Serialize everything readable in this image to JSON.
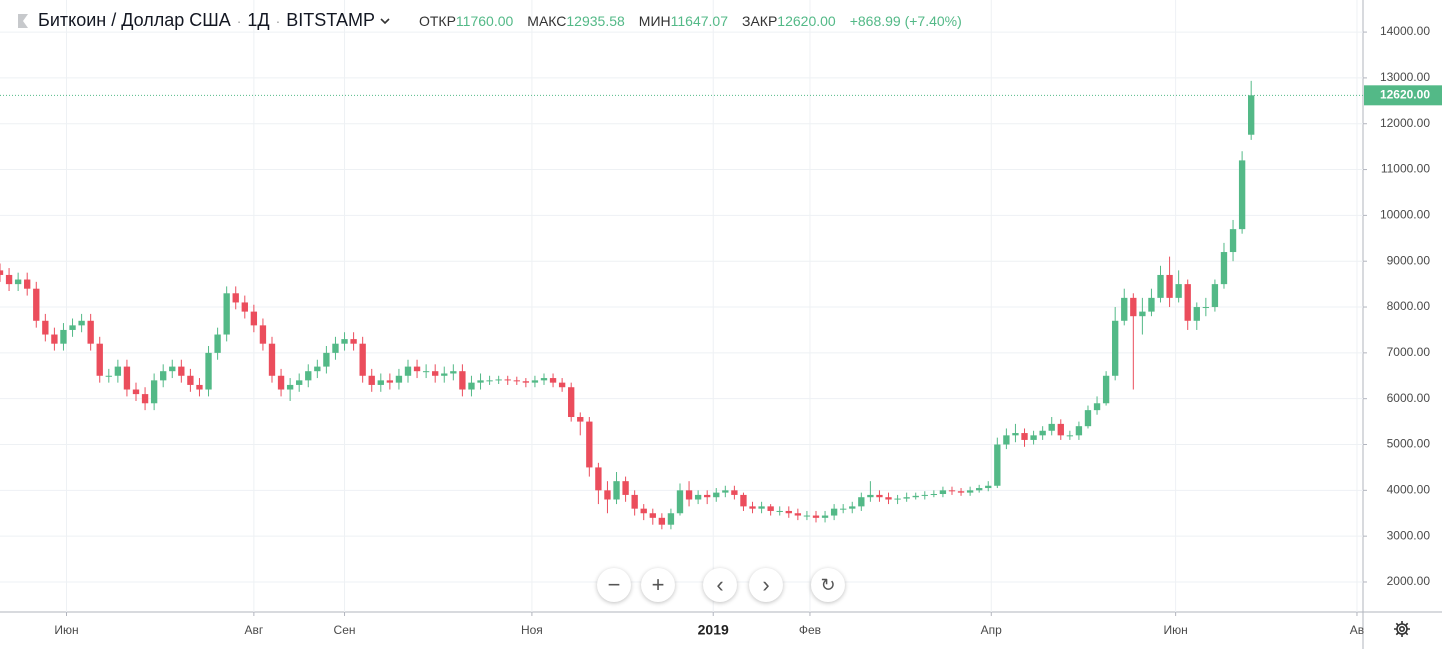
{
  "header": {
    "symbol": "Биткоин / Доллар США",
    "interval": "1Д",
    "exchange": "BITSTAMP",
    "ohlc": [
      {
        "label": "ОТКР",
        "value": "11760.00"
      },
      {
        "label": "МАКС",
        "value": "12935.58"
      },
      {
        "label": "МИН",
        "value": "11647.07"
      },
      {
        "label": "ЗАКР",
        "value": "12620.00"
      }
    ],
    "change": "+868.99 (+7.40%)"
  },
  "chart_data": {
    "type": "candlestick",
    "up_color": "#53b987",
    "down_color": "#eb4d5c",
    "grid": true,
    "xlim": [
      0,
      451
    ],
    "ylim": [
      1345,
      14700
    ],
    "xticks": [
      {
        "value": 22,
        "label": "Июн"
      },
      {
        "value": 84,
        "label": "Авг"
      },
      {
        "value": 114,
        "label": "Сен"
      },
      {
        "value": 176,
        "label": "Ноя"
      },
      {
        "value": 236,
        "label": "2019"
      },
      {
        "value": 268,
        "label": "Фев"
      },
      {
        "value": 328,
        "label": "Апр"
      },
      {
        "value": 389,
        "label": "Июн"
      },
      {
        "value": 449,
        "label": "Ав"
      }
    ],
    "yticks": [
      {
        "value": 2000,
        "label": "2000.00"
      },
      {
        "value": 3000,
        "label": "3000.00"
      },
      {
        "value": 4000,
        "label": "4000.00"
      },
      {
        "value": 5000,
        "label": "5000.00"
      },
      {
        "value": 6000,
        "label": "6000.00"
      },
      {
        "value": 7000,
        "label": "7000.00"
      },
      {
        "value": 8000,
        "label": "8000.00"
      },
      {
        "value": 9000,
        "label": "9000.00"
      },
      {
        "value": 10000,
        "label": "10000.00"
      },
      {
        "value": 11000,
        "label": "11000.00"
      },
      {
        "value": 12000,
        "label": "12000.00"
      },
      {
        "value": 13000,
        "label": "13000.00"
      },
      {
        "value": 14000,
        "label": "14000.00"
      }
    ],
    "last_price": {
      "value": 12620,
      "label": "12620.00"
    },
    "x": [
      0,
      3,
      6,
      9,
      12,
      15,
      18,
      21,
      24,
      27,
      30,
      33,
      36,
      39,
      42,
      45,
      48,
      51,
      54,
      57,
      60,
      63,
      66,
      69,
      72,
      75,
      78,
      81,
      84,
      87,
      90,
      93,
      96,
      99,
      102,
      105,
      108,
      111,
      114,
      117,
      120,
      123,
      126,
      129,
      132,
      135,
      138,
      141,
      144,
      147,
      150,
      153,
      156,
      159,
      162,
      165,
      168,
      171,
      174,
      177,
      180,
      183,
      186,
      189,
      192,
      195,
      198,
      201,
      204,
      207,
      210,
      213,
      216,
      219,
      222,
      225,
      228,
      231,
      234,
      237,
      240,
      243,
      246,
      249,
      252,
      255,
      258,
      261,
      264,
      267,
      270,
      273,
      276,
      279,
      282,
      285,
      288,
      291,
      294,
      297,
      300,
      303,
      306,
      309,
      312,
      315,
      318,
      321,
      324,
      327,
      330,
      333,
      336,
      339,
      342,
      345,
      348,
      351,
      354,
      357,
      360,
      363,
      366,
      369,
      372,
      375,
      378,
      381,
      384,
      387,
      390,
      393,
      396,
      399,
      402,
      405,
      408,
      411,
      414
    ],
    "open": [
      8800,
      8700,
      8500,
      8600,
      8400,
      7700,
      7400,
      7200,
      7500,
      7600,
      7700,
      7200,
      6500,
      6500,
      6700,
      6200,
      6100,
      5900,
      6400,
      6600,
      6700,
      6500,
      6300,
      6200,
      7000,
      7400,
      8300,
      8100,
      7900,
      7600,
      7200,
      6500,
      6200,
      6300,
      6400,
      6600,
      6700,
      7000,
      7200,
      7300,
      7200,
      6500,
      6300,
      6400,
      6350,
      6500,
      6700,
      6600,
      6600,
      6500,
      6550,
      6600,
      6200,
      6350,
      6400,
      6400,
      6420,
      6400,
      6380,
      6350,
      6400,
      6450,
      6350,
      6250,
      5600,
      5500,
      4500,
      4000,
      3800,
      4200,
      3900,
      3600,
      3500,
      3400,
      3250,
      3500,
      4000,
      3800,
      3900,
      3850,
      3950,
      4000,
      3900,
      3650,
      3600,
      3650,
      3550,
      3550,
      3500,
      3450,
      3450,
      3400,
      3450,
      3600,
      3600,
      3650,
      3850,
      3900,
      3850,
      3800,
      3820,
      3850,
      3880,
      3900,
      3920,
      4000,
      3980,
      3950,
      4000,
      4050,
      4100,
      5000,
      5200,
      5250,
      5100,
      5200,
      5300,
      5450,
      5200,
      5200,
      5400,
      5750,
      5900,
      6500,
      7700,
      8200,
      7800,
      7900,
      8200,
      8700,
      8200,
      8500,
      7700,
      8000,
      8000,
      8500,
      9200,
      9700,
      11760
    ],
    "high": [
      8950,
      8850,
      8750,
      8750,
      8550,
      7850,
      7550,
      7650,
      7750,
      7850,
      7850,
      7350,
      6650,
      6850,
      6850,
      6350,
      6250,
      6550,
      6750,
      6850,
      6850,
      6650,
      6450,
      7150,
      7550,
      8450,
      8450,
      8250,
      8050,
      7750,
      7350,
      6650,
      6450,
      6550,
      6750,
      6850,
      7150,
      7350,
      7450,
      7450,
      7350,
      6650,
      6550,
      6550,
      6650,
      6850,
      6850,
      6750,
      6750,
      6700,
      6750,
      6750,
      6500,
      6550,
      6500,
      6500,
      6500,
      6480,
      6450,
      6500,
      6550,
      6550,
      6450,
      6350,
      5700,
      5600,
      4600,
      4200,
      4400,
      4300,
      4000,
      3700,
      3600,
      3500,
      3600,
      4150,
      4200,
      4000,
      4000,
      4050,
      4100,
      4100,
      3950,
      3750,
      3750,
      3700,
      3650,
      3650,
      3600,
      3550,
      3550,
      3550,
      3700,
      3700,
      3750,
      3950,
      4200,
      4000,
      3950,
      3900,
      3950,
      3950,
      3980,
      4000,
      4080,
      4080,
      4050,
      4080,
      4120,
      4200,
      5150,
      5350,
      5450,
      5350,
      5300,
      5400,
      5600,
      5550,
      5300,
      5500,
      5850,
      6050,
      6600,
      8000,
      8400,
      8300,
      8200,
      8400,
      8900,
      9100,
      8800,
      8600,
      8100,
      8200,
      8600,
      9400,
      9900,
      11400,
      12935.58
    ],
    "low": [
      8550,
      8350,
      8350,
      8250,
      7550,
      7250,
      7050,
      7050,
      7350,
      7450,
      7050,
      6350,
      6350,
      6350,
      6050,
      5950,
      5750,
      5750,
      6250,
      6450,
      6350,
      6150,
      6050,
      6050,
      6850,
      7250,
      7950,
      7750,
      7450,
      7050,
      6350,
      6050,
      5950,
      6150,
      6250,
      6450,
      6550,
      6850,
      7050,
      7050,
      6350,
      6150,
      6150,
      6200,
      6200,
      6350,
      6450,
      6450,
      6350,
      6350,
      6400,
      6050,
      6050,
      6200,
      6300,
      6320,
      6300,
      6300,
      6250,
      6250,
      6300,
      6250,
      6150,
      5500,
      5200,
      4300,
      3700,
      3500,
      3700,
      3750,
      3450,
      3350,
      3250,
      3150,
      3150,
      3450,
      3650,
      3700,
      3700,
      3750,
      3850,
      3800,
      3550,
      3500,
      3500,
      3450,
      3450,
      3400,
      3350,
      3350,
      3300,
      3300,
      3350,
      3500,
      3500,
      3550,
      3750,
      3750,
      3700,
      3700,
      3750,
      3800,
      3800,
      3850,
      3850,
      3900,
      3880,
      3880,
      3950,
      3980,
      4050,
      4900,
      5050,
      4950,
      5000,
      5100,
      5200,
      5100,
      5100,
      5100,
      5350,
      5650,
      5850,
      6400,
      7600,
      6200,
      7400,
      7800,
      8100,
      8000,
      8100,
      7500,
      7500,
      7800,
      7900,
      8400,
      9000,
      9600,
      11647.07
    ],
    "close": [
      8700,
      8500,
      8600,
      8400,
      7700,
      7400,
      7200,
      7500,
      7600,
      7700,
      7200,
      6500,
      6500,
      6700,
      6200,
      6100,
      5900,
      6400,
      6600,
      6700,
      6500,
      6300,
      6200,
      7000,
      7400,
      8300,
      8100,
      7900,
      7600,
      7200,
      6500,
      6200,
      6300,
      6400,
      6600,
      6700,
      7000,
      7200,
      7300,
      7200,
      6500,
      6300,
      6400,
      6350,
      6500,
      6700,
      6600,
      6600,
      6500,
      6550,
      6600,
      6200,
      6350,
      6400,
      6400,
      6420,
      6400,
      6380,
      6350,
      6400,
      6450,
      6350,
      6250,
      5600,
      5500,
      4500,
      4000,
      3800,
      4200,
      3900,
      3600,
      3500,
      3400,
      3250,
      3500,
      4000,
      3800,
      3900,
      3850,
      3950,
      4000,
      3900,
      3650,
      3600,
      3650,
      3550,
      3550,
      3500,
      3450,
      3450,
      3400,
      3450,
      3600,
      3600,
      3650,
      3850,
      3900,
      3850,
      3800,
      3820,
      3850,
      3880,
      3900,
      3920,
      4000,
      3980,
      3950,
      4000,
      4050,
      4100,
      5000,
      5200,
      5250,
      5100,
      5200,
      5300,
      5450,
      5200,
      5200,
      5400,
      5750,
      5900,
      6500,
      7700,
      8200,
      7800,
      7900,
      8200,
      8700,
      8200,
      8500,
      7700,
      8000,
      8000,
      8500,
      9200,
      9700,
      11200,
      12620
    ]
  }
}
